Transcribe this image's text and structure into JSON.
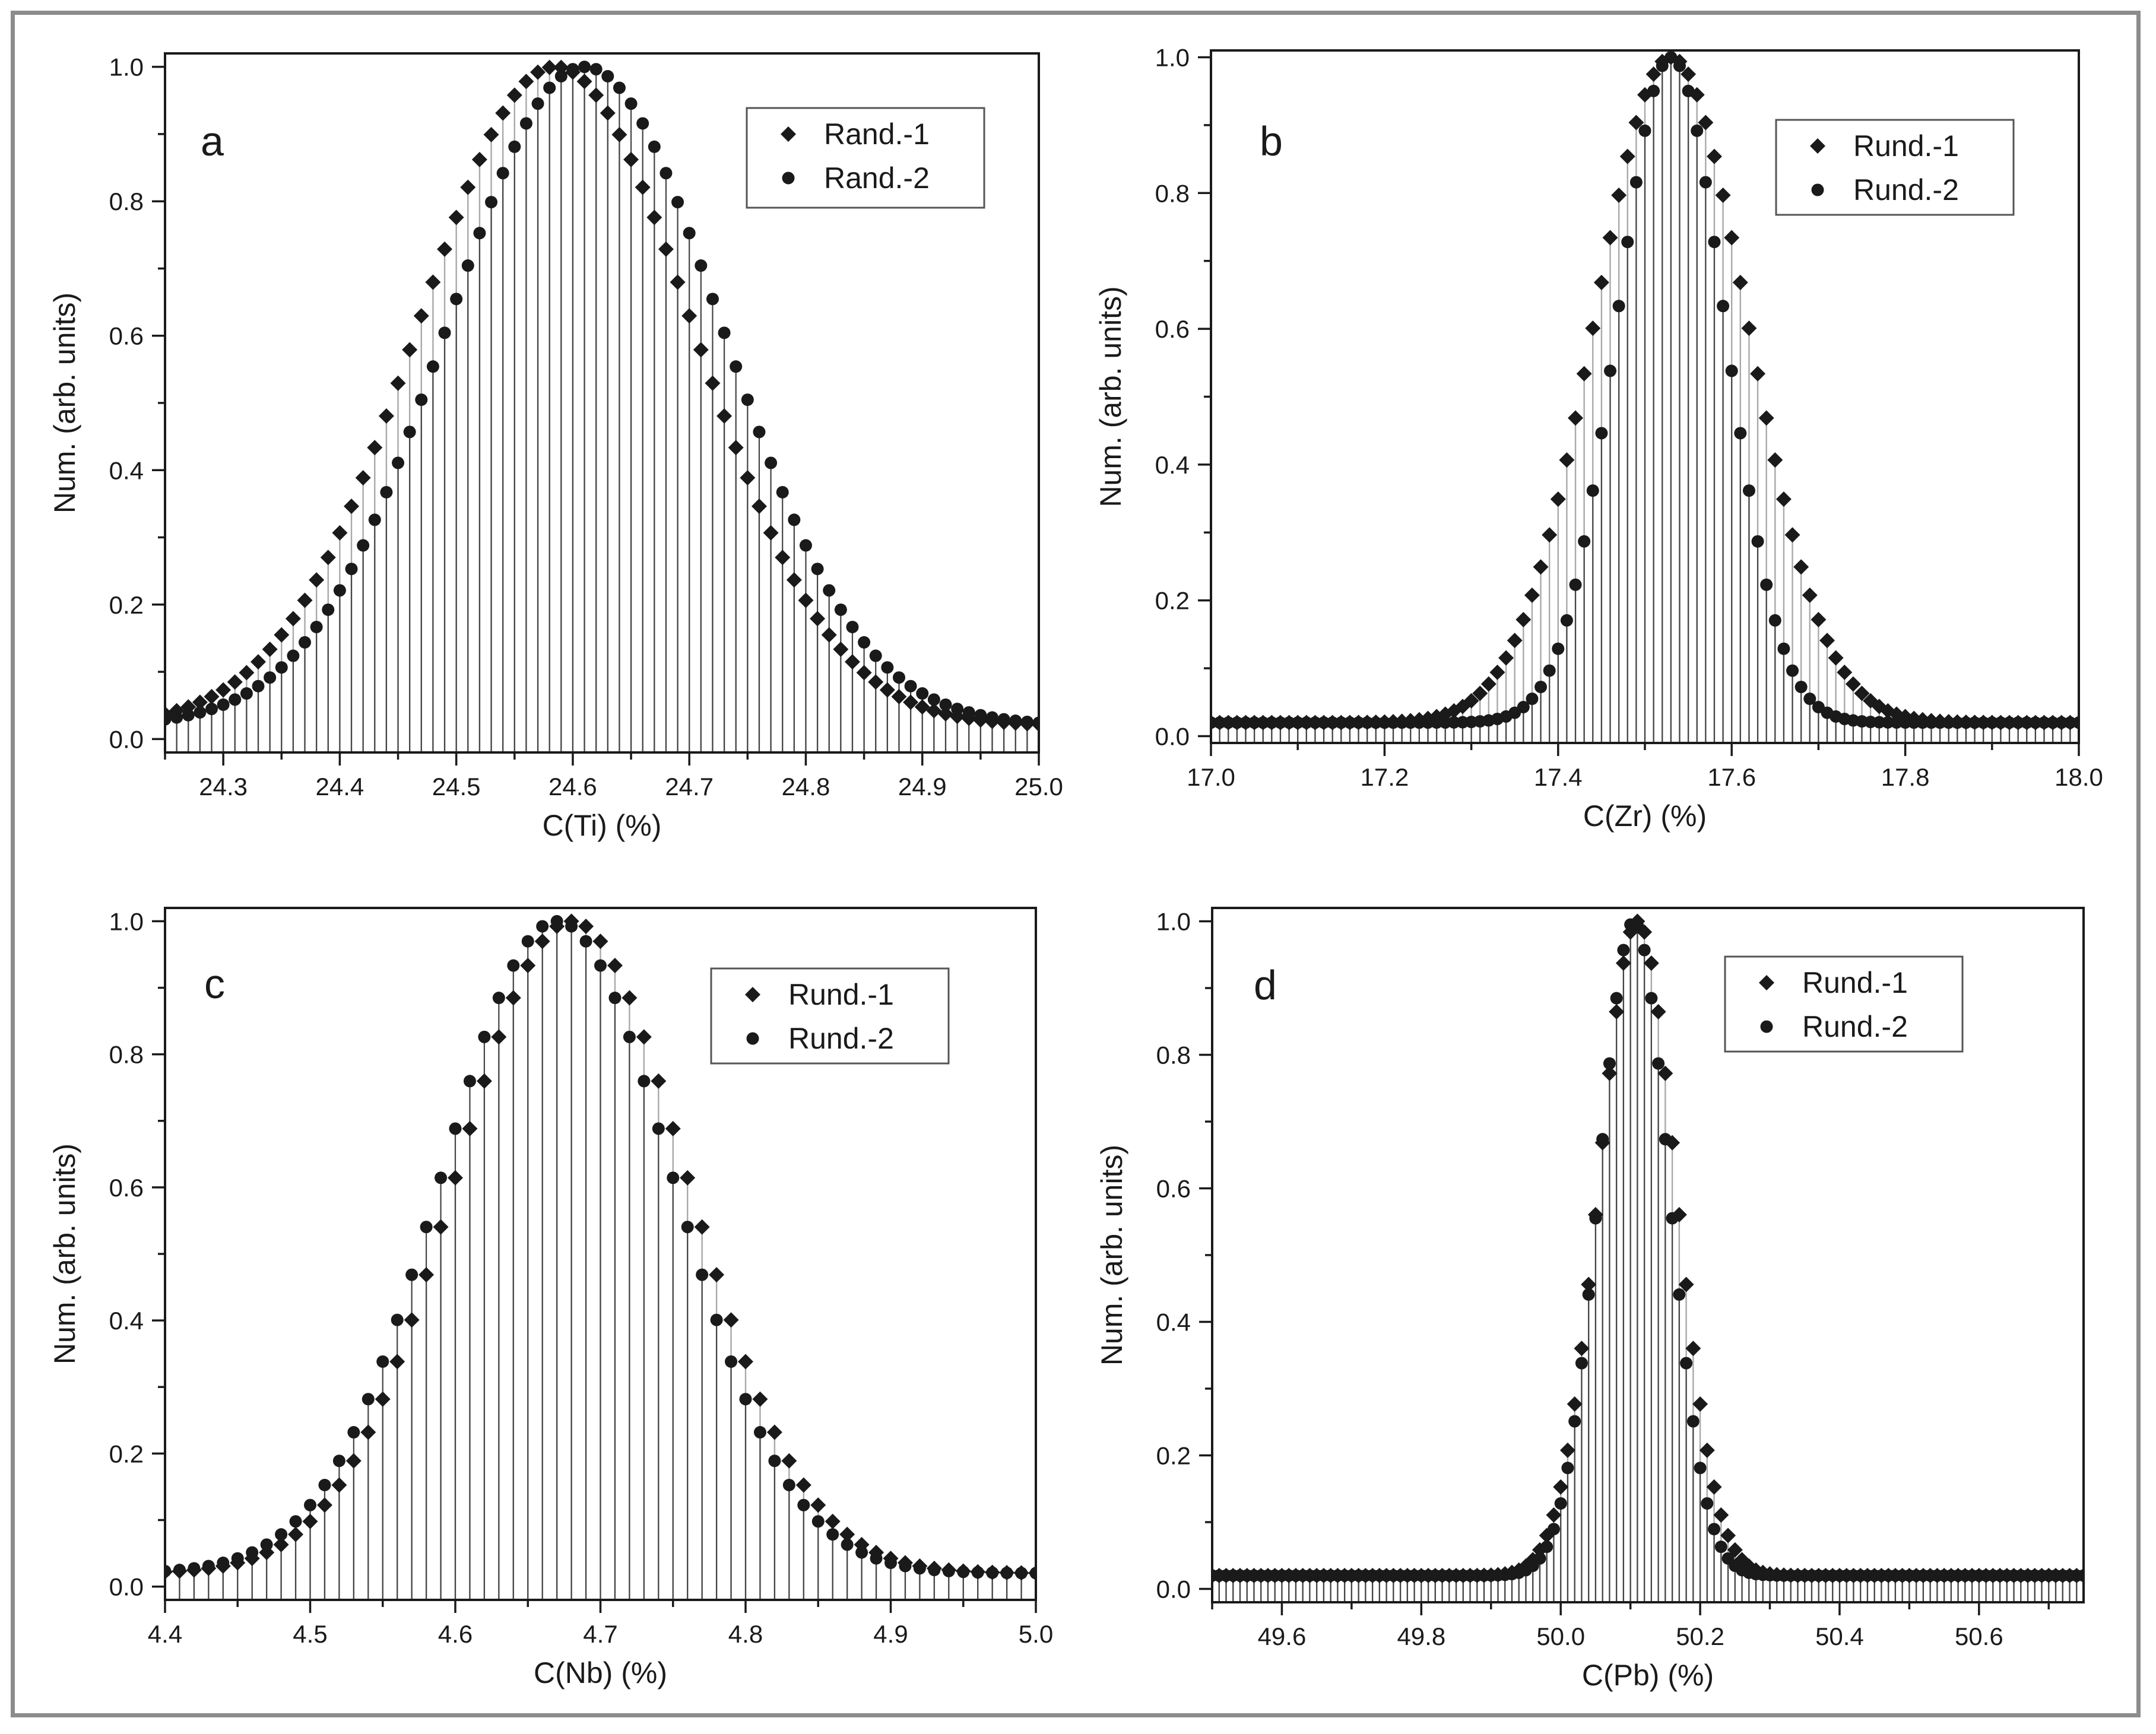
{
  "chart_data": [
    {
      "type": "scatter",
      "panel_label": "a",
      "xlabel": "C(Ti) (%)",
      "ylabel": "Num. (arb. units)",
      "xlim": [
        24.25,
        25.0
      ],
      "ylim": [
        -0.02,
        1.02
      ],
      "xticks": [
        "24.3",
        "24.4",
        "24.5",
        "24.6",
        "24.7",
        "24.8",
        "24.9",
        "25.0"
      ],
      "yticks": [
        "0.0",
        "0.2",
        "0.4",
        "0.6",
        "0.8",
        "1.0"
      ],
      "legend_position": "top-right",
      "grid": false,
      "series": [
        {
          "name": "Rand.-1",
          "marker": "diamond",
          "center": 24.585,
          "sigma": 0.118,
          "baseline": 0.02,
          "x_start": 24.25,
          "x_end": 25.0,
          "step": 0.01
        },
        {
          "name": "Rand.-2",
          "marker": "circle",
          "center": 24.61,
          "sigma": 0.118,
          "baseline": 0.02,
          "x_start": 24.25,
          "x_end": 25.0,
          "step": 0.01
        }
      ]
    },
    {
      "type": "scatter",
      "panel_label": "b",
      "xlabel": "C(Zr) (%)",
      "ylabel": "Num. (arb. units)",
      "xlim": [
        17.0,
        18.0
      ],
      "ylim": [
        -0.01,
        1.01
      ],
      "xticks": [
        "17.0",
        "17.2",
        "17.4",
        "17.6",
        "17.8",
        "18.0"
      ],
      "yticks": [
        "0.0",
        "0.2",
        "0.4",
        "0.6",
        "0.8",
        "1.0"
      ],
      "legend_position": "top-right",
      "grid": false,
      "series": [
        {
          "name": "Rund.-1",
          "marker": "diamond",
          "center": 17.53,
          "sigma": 0.088,
          "baseline": 0.02,
          "x_start": 17.0,
          "x_end": 18.0,
          "step": 0.01
        },
        {
          "name": "Rund.-2",
          "marker": "circle",
          "center": 17.53,
          "sigma": 0.062,
          "baseline": 0.02,
          "x_start": 17.0,
          "x_end": 18.0,
          "step": 0.01
        }
      ]
    },
    {
      "type": "scatter",
      "panel_label": "c",
      "xlabel": "C(Nb) (%)",
      "ylabel": "Num. (arb. units)",
      "xlim": [
        4.4,
        5.0
      ],
      "ylim": [
        -0.02,
        1.02
      ],
      "xticks": [
        "4.4",
        "4.5",
        "4.6",
        "4.7",
        "4.8",
        "4.9",
        "5.0"
      ],
      "yticks": [
        "0.0",
        "0.2",
        "0.4",
        "0.6",
        "0.8",
        "1.0"
      ],
      "legend_position": "top-right",
      "grid": false,
      "series": [
        {
          "name": "Rund.-1",
          "marker": "diamond",
          "center": 4.68,
          "sigma": 0.08,
          "baseline": 0.02,
          "x_start": 4.4,
          "x_end": 5.0,
          "step": 0.01
        },
        {
          "name": "Rund.-2",
          "marker": "circle",
          "center": 4.67,
          "sigma": 0.08,
          "baseline": 0.02,
          "x_start": 4.4,
          "x_end": 5.0,
          "step": 0.01
        }
      ]
    },
    {
      "type": "scatter",
      "panel_label": "d",
      "xlabel": "C(Pb) (%)",
      "ylabel": "Num. (arb. units)",
      "xlim": [
        49.5,
        50.75
      ],
      "ylim": [
        -0.02,
        1.02
      ],
      "xticks": [
        "49.6",
        "49.8",
        "50.0",
        "50.2",
        "50.4",
        "50.6"
      ],
      "yticks": [
        "0.0",
        "0.2",
        "0.4",
        "0.6",
        "0.8",
        "1.0"
      ],
      "legend_position": "top-right",
      "grid": false,
      "series": [
        {
          "name": "Rund.-1",
          "marker": "diamond",
          "center": 50.11,
          "sigma": 0.055,
          "baseline": 0.02,
          "x_start": 49.5,
          "x_end": 50.75,
          "step": 0.01
        },
        {
          "name": "Rund.-2",
          "marker": "circle",
          "center": 50.105,
          "sigma": 0.05,
          "baseline": 0.02,
          "x_start": 49.5,
          "x_end": 50.75,
          "step": 0.01
        }
      ]
    }
  ],
  "colors": {
    "marker": "#1a1a1a",
    "stem": "#b8b8b8",
    "frame": "#8c8c8c",
    "axis": "#1a1a1a"
  }
}
